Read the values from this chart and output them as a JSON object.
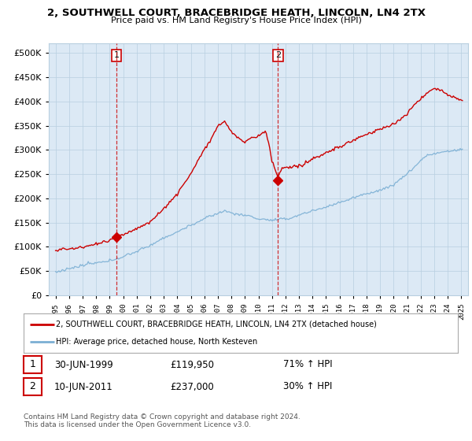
{
  "title": "2, SOUTHWELL COURT, BRACEBRIDGE HEATH, LINCOLN, LN4 2TX",
  "subtitle": "Price paid vs. HM Land Registry's House Price Index (HPI)",
  "legend_line1": "2, SOUTHWELL COURT, BRACEBRIDGE HEATH, LINCOLN, LN4 2TX (detached house)",
  "legend_line2": "HPI: Average price, detached house, North Kesteven",
  "sale1_date": "30-JUN-1999",
  "sale1_price": "£119,950",
  "sale1_hpi": "71% ↑ HPI",
  "sale2_date": "10-JUN-2011",
  "sale2_price": "£237,000",
  "sale2_hpi": "30% ↑ HPI",
  "footer": "Contains HM Land Registry data © Crown copyright and database right 2024.\nThis data is licensed under the Open Government Licence v3.0.",
  "sale1_x": 1999.5,
  "sale1_y": 119950,
  "sale2_x": 2011.45,
  "sale2_y": 237000,
  "hpi_color": "#7bafd4",
  "price_color": "#cc0000",
  "dashed_line_color": "#cc0000",
  "background_color": "#ffffff",
  "chart_bg_color": "#dce9f5",
  "grid_color": "#b8cfe0",
  "ylim": [
    0,
    520000
  ],
  "xlim_start": 1994.5,
  "xlim_end": 2025.5,
  "yticks": [
    0,
    50000,
    100000,
    150000,
    200000,
    250000,
    300000,
    350000,
    400000,
    450000,
    500000
  ],
  "xtick_start": 1995,
  "xtick_end": 2025
}
